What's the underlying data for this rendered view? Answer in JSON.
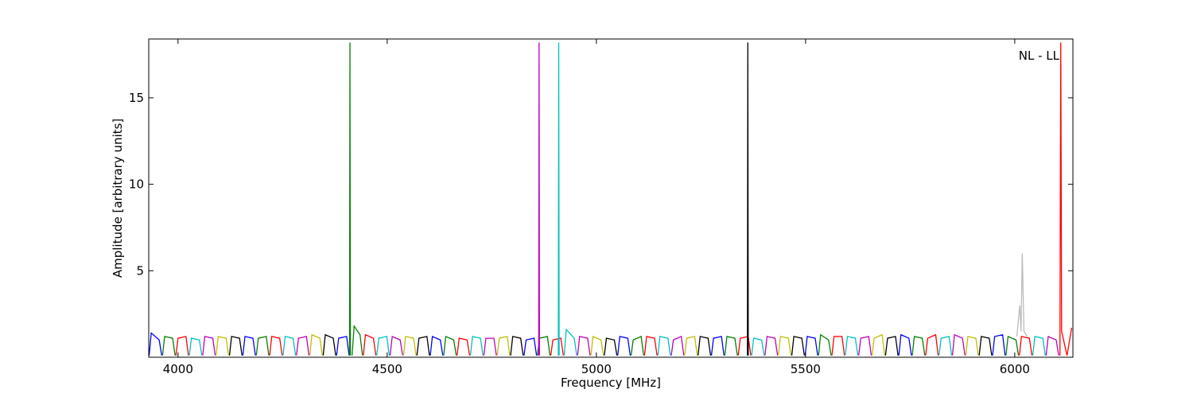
{
  "chart_data": {
    "type": "line",
    "annotation": "NL - LL",
    "xlabel": "Frequency [MHz]",
    "ylabel": "Amplitude [arbitrary units]",
    "xlim": [
      3930,
      6139
    ],
    "ylim": [
      0,
      18.4
    ],
    "xticks": [
      4000,
      4500,
      5000,
      5500,
      6000
    ],
    "yticks": [
      5,
      10,
      15
    ],
    "series": [
      {
        "color": "#bbbbbb",
        "x": [
          6005,
          6012,
          6015,
          6018,
          6022,
          6030
        ],
        "values": [
          1.2,
          3.0,
          1.5,
          6.0,
          1.5,
          1.2
        ]
      },
      {
        "color": "#0000ff",
        "x": [
          3931,
          3936,
          3955,
          3961,
          null,
          4155,
          4160,
          4179,
          4185,
          null,
          4379,
          4384,
          4403,
          4409,
          null,
          4603,
          4608,
          4627,
          4633,
          null,
          4827,
          4832,
          4851,
          4857,
          null,
          5051,
          5056,
          5075,
          5081,
          null,
          5275,
          5280,
          5299,
          5305,
          null,
          5499,
          5504,
          5523,
          5529,
          null,
          5723,
          5728,
          5747,
          5753,
          null,
          5947,
          5952,
          5971,
          5977
        ],
        "values": [
          0.1,
          1.4,
          1.0,
          0.1,
          null,
          0.1,
          1.2,
          1.1,
          0.1,
          null,
          0.1,
          1.1,
          1.2,
          0.1,
          null,
          0.1,
          1.2,
          1.0,
          0.1,
          null,
          0.1,
          1.0,
          1.1,
          0.1,
          null,
          0.1,
          1.2,
          1.1,
          0.1,
          null,
          0.1,
          1.1,
          1.2,
          0.1,
          null,
          0.1,
          1.2,
          1.1,
          0.1,
          null,
          0.1,
          1.3,
          1.1,
          0.1,
          null,
          0.1,
          1.2,
          1.3,
          0.1
        ]
      },
      {
        "color": "#008000",
        "x": [
          3963,
          3968,
          3987,
          3993,
          null,
          4187,
          4192,
          4211,
          4217,
          null,
          4410,
          4411,
          4412,
          null,
          4416,
          4421,
          4435,
          4441,
          null,
          4635,
          4640,
          4659,
          4665,
          null,
          4859,
          4864,
          4883,
          4889,
          null,
          5083,
          5088,
          5107,
          5113,
          null,
          5307,
          5312,
          5331,
          5337,
          null,
          5531,
          5536,
          5555,
          5561,
          null,
          5755,
          5760,
          5779,
          5785,
          null,
          5979,
          5984,
          6003,
          6009
        ],
        "values": [
          0.1,
          1.2,
          1.1,
          0.1,
          null,
          0.1,
          1.1,
          1.2,
          0.1,
          null,
          0.1,
          18.2,
          0.1,
          null,
          0.1,
          1.8,
          1.3,
          0.1,
          null,
          0.1,
          1.2,
          1.0,
          0.1,
          null,
          0.1,
          1.1,
          1.2,
          0.1,
          null,
          0.1,
          1.0,
          1.2,
          0.1,
          null,
          0.1,
          1.2,
          1.1,
          0.1,
          null,
          0.1,
          1.3,
          1.0,
          0.1,
          null,
          0.1,
          1.2,
          1.1,
          0.1,
          null,
          0.1,
          1.2,
          1.0,
          0.1
        ]
      },
      {
        "color": "#ff0000",
        "x": [
          3995,
          4000,
          4019,
          4025,
          null,
          4219,
          4224,
          4243,
          4249,
          null,
          4443,
          4448,
          4467,
          4473,
          null,
          4667,
          4672,
          4691,
          4697,
          null,
          4891,
          4896,
          4915,
          4921,
          null,
          5115,
          5120,
          5139,
          5145,
          null,
          5339,
          5344,
          5363,
          5369,
          null,
          5563,
          5568,
          5587,
          5593,
          null,
          5787,
          5792,
          5811,
          5817,
          null,
          6011,
          6016,
          6035,
          6041,
          null,
          6108,
          6110,
          6112,
          6125,
          6136
        ],
        "values": [
          0.1,
          1.1,
          1.2,
          0.1,
          null,
          0.1,
          1.2,
          1.1,
          0.1,
          null,
          0.1,
          1.3,
          1.1,
          0.1,
          null,
          0.1,
          1.1,
          1.0,
          0.1,
          null,
          0.1,
          1.0,
          1.1,
          0.1,
          null,
          0.1,
          1.2,
          1.1,
          0.1,
          null,
          0.1,
          1.1,
          1.2,
          0.1,
          null,
          0.1,
          1.2,
          1.2,
          0.1,
          null,
          0.1,
          1.1,
          1.3,
          0.1,
          null,
          0.1,
          1.2,
          1.1,
          0.1,
          null,
          0.1,
          18.2,
          1.5,
          0.1,
          1.7
        ]
      },
      {
        "color": "#00bfbf",
        "x": [
          4027,
          4032,
          4051,
          4057,
          null,
          4251,
          4256,
          4275,
          4281,
          null,
          4475,
          4480,
          4499,
          4505,
          null,
          4699,
          4704,
          4723,
          4729,
          null,
          4909,
          4910,
          4911,
          null,
          4923,
          4928,
          4947,
          4953,
          null,
          5147,
          5152,
          5171,
          5177,
          null,
          5371,
          5376,
          5395,
          5401,
          null,
          5595,
          5600,
          5619,
          5625,
          null,
          5819,
          5824,
          5843,
          5849,
          null,
          6043,
          6048,
          6067,
          6073
        ],
        "values": [
          0.1,
          1.1,
          1.0,
          0.1,
          null,
          0.1,
          1.2,
          1.1,
          0.1,
          null,
          0.1,
          1.1,
          1.2,
          0.1,
          null,
          0.1,
          1.2,
          1.1,
          0.1,
          null,
          0.1,
          18.2,
          0.1,
          null,
          0.1,
          1.6,
          1.1,
          0.1,
          null,
          0.1,
          1.2,
          1.1,
          0.1,
          null,
          0.1,
          1.1,
          1.0,
          0.1,
          null,
          0.1,
          1.2,
          1.1,
          0.1,
          null,
          0.1,
          1.1,
          1.2,
          0.1,
          null,
          0.1,
          1.2,
          1.1,
          0.1
        ]
      },
      {
        "color": "#bf00bf",
        "x": [
          4059,
          4064,
          4083,
          4089,
          null,
          4283,
          4288,
          4307,
          4313,
          null,
          4507,
          4512,
          4531,
          4537,
          null,
          4731,
          4736,
          4755,
          4761,
          null,
          4862,
          4863,
          4864,
          null,
          4955,
          4960,
          4979,
          4985,
          null,
          5179,
          5184,
          5203,
          5209,
          null,
          5403,
          5408,
          5427,
          5433,
          null,
          5627,
          5632,
          5651,
          5657,
          null,
          5851,
          5856,
          5875,
          5881,
          null,
          6075,
          6080,
          6099,
          6105
        ],
        "values": [
          0.1,
          1.2,
          1.1,
          0.1,
          null,
          0.1,
          1.1,
          1.2,
          0.1,
          null,
          0.1,
          1.2,
          1.0,
          0.1,
          null,
          0.1,
          1.1,
          1.1,
          0.1,
          null,
          0.1,
          18.2,
          0.1,
          null,
          0.1,
          1.2,
          1.1,
          0.1,
          null,
          0.1,
          1.0,
          1.2,
          0.1,
          null,
          0.1,
          1.2,
          1.1,
          0.1,
          null,
          0.1,
          1.1,
          1.2,
          0.1,
          null,
          0.1,
          1.3,
          1.1,
          0.1,
          null,
          0.1,
          1.2,
          1.0,
          0.1
        ]
      },
      {
        "color": "#bfbf00",
        "x": [
          4091,
          4096,
          4115,
          4121,
          null,
          4315,
          4320,
          4339,
          4345,
          null,
          4539,
          4544,
          4563,
          4569,
          null,
          4763,
          4768,
          4787,
          4793,
          null,
          4987,
          4992,
          5011,
          5017,
          null,
          5211,
          5216,
          5235,
          5241,
          null,
          5435,
          5440,
          5459,
          5465,
          null,
          5659,
          5664,
          5683,
          5689,
          null,
          5883,
          5888,
          5907,
          5913
        ],
        "values": [
          0.1,
          1.2,
          1.1,
          0.1,
          null,
          0.1,
          1.3,
          1.1,
          0.1,
          null,
          0.1,
          1.2,
          1.1,
          0.1,
          null,
          0.1,
          1.1,
          1.2,
          0.1,
          null,
          0.1,
          1.2,
          1.0,
          0.1,
          null,
          0.1,
          1.1,
          1.2,
          0.1,
          null,
          0.1,
          1.2,
          1.1,
          0.1,
          null,
          0.1,
          1.1,
          1.3,
          0.1,
          null,
          0.1,
          1.2,
          1.1,
          0.1
        ]
      },
      {
        "color": "#000000",
        "x": [
          4123,
          4128,
          4147,
          4153,
          null,
          4347,
          4352,
          4371,
          4377,
          null,
          4571,
          4576,
          4595,
          4601,
          null,
          4795,
          4800,
          4819,
          4825,
          null,
          5019,
          5024,
          5043,
          5049,
          null,
          5243,
          5248,
          5267,
          5273,
          null,
          5361,
          5362,
          5363,
          null,
          5467,
          5472,
          5491,
          5497,
          null,
          5691,
          5696,
          5715,
          5721,
          null,
          5915,
          5920,
          5939,
          5945
        ],
        "values": [
          0.1,
          1.2,
          1.1,
          0.1,
          null,
          0.1,
          1.3,
          1.1,
          0.1,
          null,
          0.1,
          1.1,
          1.2,
          0.1,
          null,
          0.1,
          1.2,
          1.1,
          0.1,
          null,
          0.1,
          1.1,
          1.0,
          0.1,
          null,
          0.1,
          1.2,
          1.1,
          0.1,
          null,
          0.1,
          18.2,
          0.1,
          null,
          0.1,
          1.2,
          1.1,
          0.1,
          null,
          0.1,
          1.1,
          1.2,
          0.1,
          null,
          0.1,
          1.2,
          1.1,
          0.1
        ]
      }
    ]
  }
}
